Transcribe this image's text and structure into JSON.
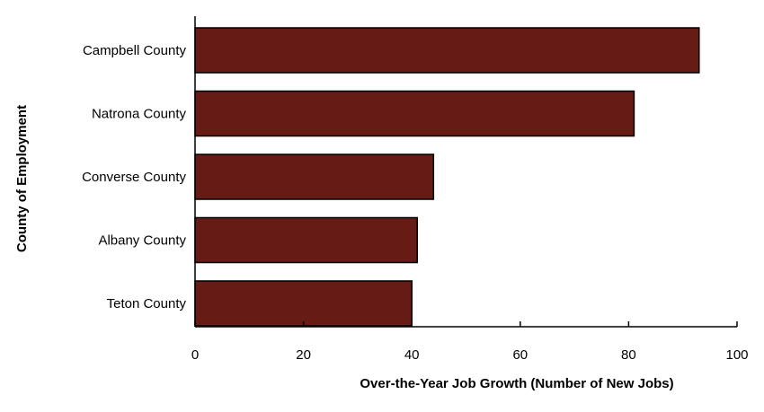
{
  "chart_data": {
    "type": "bar",
    "orientation": "horizontal",
    "title": "",
    "categories": [
      "Campbell County",
      "Natrona County",
      "Converse County",
      "Albany County",
      "Teton County"
    ],
    "values": [
      93,
      81,
      44,
      41,
      40
    ],
    "xlabel": "Over-the-Year Job Growth (Number of New Jobs)",
    "ylabel": "County of Employment",
    "xlim": [
      0,
      100
    ],
    "xticks": [
      0,
      20,
      40,
      60,
      80,
      100
    ],
    "grid": false,
    "legend": "none",
    "bar_color": "#661c15",
    "bar_stroke": "#000000"
  }
}
